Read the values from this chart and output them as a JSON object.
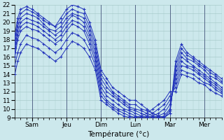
{
  "xlabel": "Température (°c)",
  "xlim": [
    0,
    144
  ],
  "ylim": [
    9,
    22
  ],
  "yticks": [
    9,
    10,
    11,
    12,
    13,
    14,
    15,
    16,
    17,
    18,
    19,
    20,
    21,
    22
  ],
  "xtick_positions": [
    12,
    36,
    60,
    84,
    108,
    132
  ],
  "xtick_labels": [
    "Sam",
    "Jeu",
    "Dim",
    "Lun",
    "Mar",
    "Mer"
  ],
  "bg_color": "#cce8ec",
  "grid_color": "#aacccc",
  "line_color": "#2233bb",
  "vline_positions": [
    12,
    36,
    60,
    84,
    108,
    132
  ],
  "figsize": [
    3.2,
    2.0
  ],
  "dpi": 100,
  "series": [
    {
      "x": [
        0,
        2,
        4,
        8,
        12,
        16,
        20,
        24,
        28,
        32,
        36,
        40,
        44,
        48,
        52,
        56,
        60,
        64,
        68,
        72,
        76,
        80,
        84,
        88,
        92,
        96,
        100,
        104,
        108,
        112,
        116,
        120,
        124,
        128,
        132,
        136,
        140,
        144
      ],
      "y": [
        18.5,
        20.5,
        21.5,
        21.8,
        21.5,
        21.0,
        20.5,
        20.0,
        19.5,
        20.5,
        21.5,
        22.0,
        21.8,
        21.5,
        20.0,
        18.0,
        14.5,
        13.5,
        12.5,
        12.0,
        11.5,
        11.0,
        11.0,
        10.5,
        10.0,
        9.5,
        9.2,
        9.0,
        9.5,
        15.5,
        17.5,
        16.5,
        16.0,
        15.5,
        15.0,
        14.5,
        14.0,
        13.5
      ]
    },
    {
      "x": [
        0,
        2,
        4,
        8,
        12,
        16,
        20,
        24,
        28,
        32,
        36,
        40,
        44,
        48,
        52,
        56,
        60,
        64,
        68,
        72,
        76,
        80,
        84,
        88,
        92,
        96,
        100,
        104,
        108,
        112,
        116,
        120,
        124,
        128,
        132,
        136,
        140,
        144
      ],
      "y": [
        18.0,
        20.0,
        21.0,
        21.5,
        21.2,
        20.8,
        20.2,
        19.8,
        19.5,
        20.0,
        21.0,
        21.5,
        21.2,
        21.0,
        19.5,
        17.5,
        14.0,
        13.0,
        12.0,
        11.5,
        11.0,
        10.5,
        10.5,
        10.0,
        9.8,
        9.5,
        9.2,
        9.0,
        9.5,
        15.0,
        17.0,
        16.2,
        15.8,
        15.2,
        14.8,
        14.2,
        13.8,
        13.2
      ]
    },
    {
      "x": [
        0,
        2,
        4,
        8,
        12,
        16,
        20,
        24,
        28,
        32,
        36,
        40,
        44,
        48,
        52,
        56,
        60,
        64,
        68,
        72,
        76,
        80,
        84,
        88,
        92,
        96,
        100,
        104,
        108,
        112,
        116,
        120,
        124,
        128,
        132,
        136,
        140,
        144
      ],
      "y": [
        17.5,
        19.5,
        20.5,
        21.0,
        20.8,
        20.5,
        19.8,
        19.2,
        19.0,
        19.5,
        20.5,
        21.0,
        20.8,
        20.5,
        19.0,
        17.0,
        13.5,
        12.5,
        11.8,
        11.2,
        10.8,
        10.2,
        10.0,
        9.8,
        9.5,
        9.2,
        9.0,
        9.0,
        9.8,
        14.5,
        16.5,
        15.8,
        15.5,
        15.0,
        14.5,
        13.8,
        13.5,
        13.0
      ]
    },
    {
      "x": [
        0,
        2,
        4,
        8,
        12,
        16,
        20,
        24,
        28,
        32,
        36,
        40,
        44,
        48,
        52,
        56,
        60,
        64,
        68,
        72,
        76,
        80,
        84,
        88,
        92,
        96,
        100,
        104,
        108,
        112,
        116,
        120,
        124,
        128,
        132,
        136,
        140,
        144
      ],
      "y": [
        17.0,
        19.0,
        20.0,
        20.5,
        20.2,
        20.0,
        19.5,
        19.0,
        18.5,
        19.0,
        20.0,
        20.8,
        20.5,
        20.0,
        18.5,
        16.5,
        13.0,
        12.0,
        11.5,
        11.0,
        10.5,
        10.0,
        9.8,
        9.5,
        9.2,
        9.0,
        9.0,
        9.2,
        10.0,
        14.0,
        16.0,
        15.5,
        15.0,
        14.5,
        14.0,
        13.5,
        13.0,
        12.5
      ]
    },
    {
      "x": [
        0,
        2,
        4,
        8,
        12,
        16,
        20,
        24,
        28,
        32,
        36,
        40,
        44,
        48,
        52,
        56,
        60,
        64,
        68,
        72,
        76,
        80,
        84,
        88,
        92,
        96,
        100,
        104,
        108,
        112,
        116,
        120,
        124,
        128,
        132,
        136,
        140,
        144
      ],
      "y": [
        16.5,
        18.5,
        19.5,
        20.0,
        19.8,
        19.5,
        19.0,
        18.5,
        18.0,
        18.5,
        19.5,
        20.2,
        20.0,
        19.5,
        18.0,
        16.0,
        12.5,
        11.5,
        11.0,
        10.5,
        10.0,
        9.8,
        9.5,
        9.2,
        9.0,
        9.0,
        9.2,
        9.5,
        10.5,
        13.5,
        15.5,
        15.0,
        14.8,
        14.2,
        13.8,
        13.2,
        12.8,
        12.2
      ]
    },
    {
      "x": [
        0,
        2,
        4,
        8,
        12,
        16,
        20,
        24,
        28,
        32,
        36,
        40,
        44,
        48,
        52,
        56,
        60,
        64,
        68,
        72,
        76,
        80,
        84,
        88,
        92,
        96,
        100,
        104,
        108,
        112,
        116,
        120,
        124,
        128,
        132,
        136,
        140,
        144
      ],
      "y": [
        16.0,
        18.0,
        19.0,
        19.5,
        19.2,
        19.0,
        18.5,
        18.0,
        17.5,
        18.0,
        19.0,
        19.8,
        19.5,
        19.0,
        17.5,
        15.5,
        12.0,
        11.0,
        10.5,
        10.0,
        9.8,
        9.5,
        9.2,
        9.0,
        9.0,
        9.2,
        9.5,
        10.0,
        11.0,
        13.0,
        15.0,
        14.8,
        14.5,
        14.0,
        13.5,
        13.0,
        12.5,
        12.0
      ]
    },
    {
      "x": [
        0,
        2,
        4,
        8,
        12,
        16,
        20,
        24,
        28,
        32,
        36,
        40,
        44,
        48,
        52,
        56,
        60,
        64,
        68,
        72,
        76,
        80,
        84,
        88,
        92,
        96,
        100,
        104,
        108,
        112,
        116,
        120,
        124,
        128,
        132,
        136,
        140,
        144
      ],
      "y": [
        15.0,
        16.5,
        17.5,
        18.5,
        18.2,
        18.0,
        17.5,
        17.0,
        16.5,
        17.0,
        18.0,
        18.8,
        18.5,
        18.0,
        16.8,
        15.0,
        11.5,
        10.8,
        10.2,
        9.8,
        9.5,
        9.2,
        9.0,
        9.0,
        9.2,
        9.5,
        10.0,
        10.5,
        11.5,
        12.5,
        14.5,
        14.2,
        14.0,
        13.5,
        13.0,
        12.8,
        12.2,
        11.8
      ]
    },
    {
      "x": [
        0,
        2,
        4,
        8,
        12,
        16,
        20,
        24,
        28,
        32,
        36,
        40,
        44,
        48,
        52,
        56,
        60,
        64,
        68,
        72,
        76,
        80,
        84,
        88,
        92,
        96,
        100,
        104,
        108,
        112,
        116,
        120,
        124,
        128,
        132,
        136,
        140,
        144
      ],
      "y": [
        14.0,
        15.5,
        16.5,
        17.5,
        17.2,
        17.0,
        16.5,
        16.0,
        15.5,
        16.0,
        17.0,
        17.8,
        17.5,
        17.0,
        16.0,
        14.5,
        11.0,
        10.5,
        10.0,
        9.5,
        9.2,
        9.0,
        9.0,
        9.2,
        9.5,
        10.0,
        10.5,
        11.0,
        12.0,
        12.0,
        14.0,
        13.8,
        13.5,
        13.0,
        12.8,
        12.2,
        11.8,
        11.5
      ]
    }
  ]
}
